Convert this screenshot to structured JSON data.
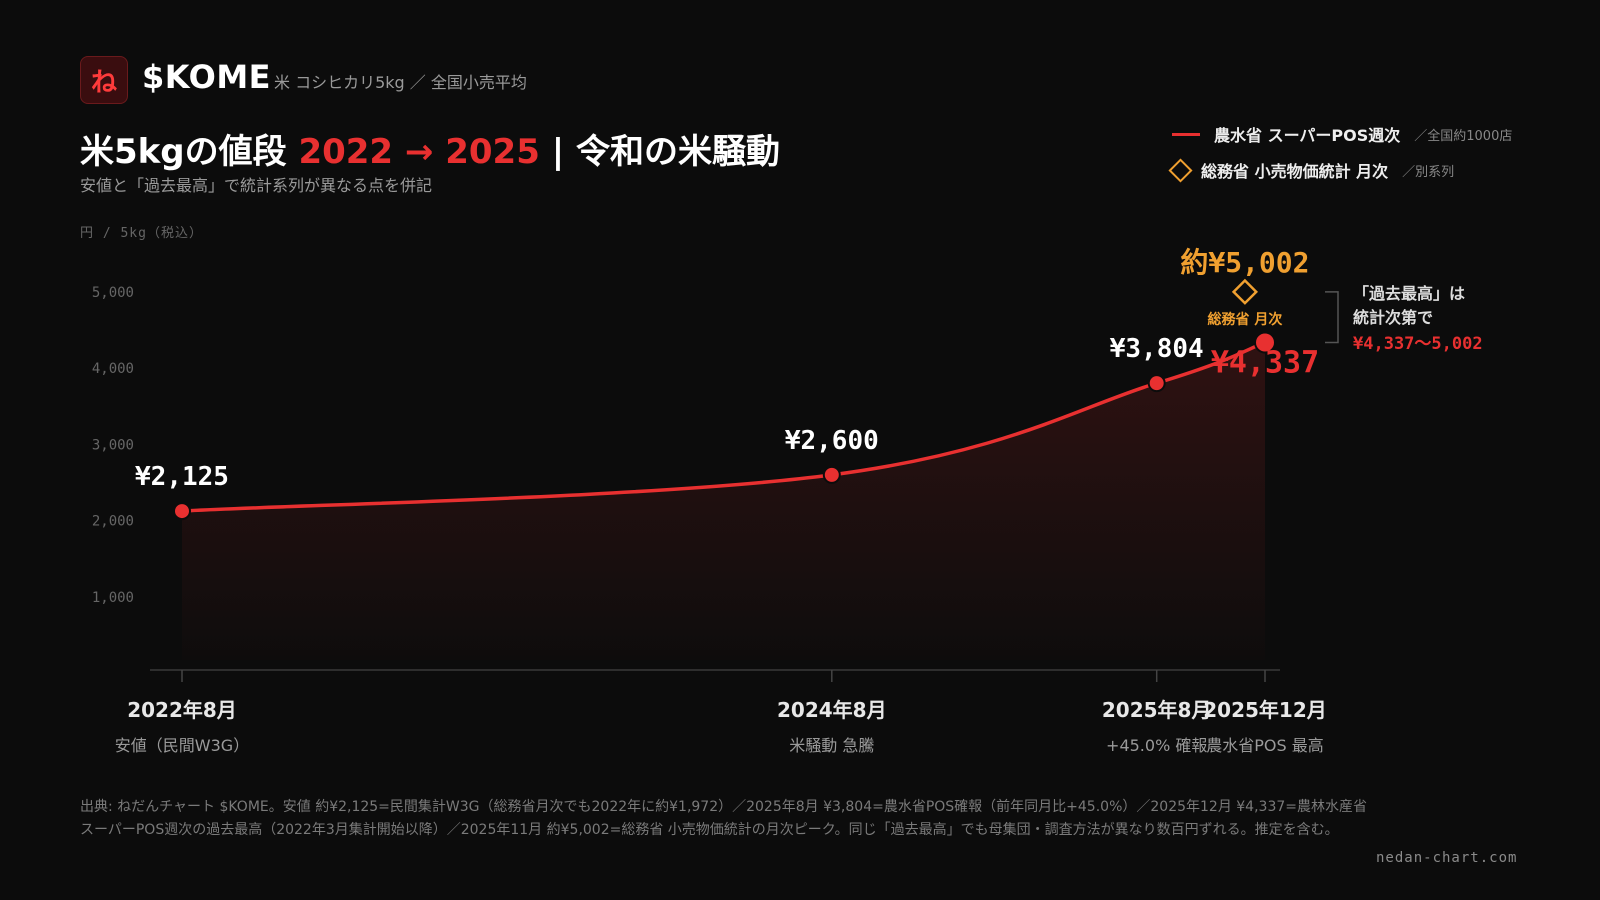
{
  "brand": {
    "logo_char": "ね",
    "ticker": "$KOME",
    "subtitle": "米 コシヒカリ5kg ／ 全国小売平均"
  },
  "heading": {
    "title_prefix": "米5kgの値段 ",
    "title_years": "2022 → 2025",
    "title_suffix": " | 令和の米騒動",
    "subtitle": "安値と「過去最高」で統計系列が異なる点を併記"
  },
  "legend": [
    {
      "label": "農水省 スーパーPOS週次",
      "note": "／全国約1000店"
    },
    {
      "label": "総務省 小売物価統計 月次",
      "note": "／別系列"
    }
  ],
  "chart_data": {
    "type": "line",
    "ylabel": "円 / 5kg（税込）",
    "ylim": [
      0,
      5200
    ],
    "yticks": [
      1000,
      2000,
      3000,
      4000,
      5000
    ],
    "ytick_labels": [
      "1,000",
      "2,000",
      "3,000",
      "4,000",
      "5,000"
    ],
    "series": [
      {
        "name": "農水省 スーパーPOS週次",
        "color": "#e83030",
        "points": [
          {
            "x": "2022-08",
            "y": 2125,
            "label": "¥2,125"
          },
          {
            "x": "2024-08",
            "y": 2600,
            "label": "¥2,600"
          },
          {
            "x": "2025-08",
            "y": 3804,
            "label": "¥3,804"
          },
          {
            "x": "2025-12",
            "y": 4337,
            "label": "¥4,337"
          }
        ]
      },
      {
        "name": "総務省 小売物価統計 月次",
        "color": "#f0a030",
        "points": [
          {
            "x": "2025-11",
            "y": 5002,
            "label": "約¥5,002",
            "sublabel": "総務省 月次"
          }
        ]
      }
    ],
    "xticks": [
      {
        "x": "2022-08",
        "label": "2022年8月",
        "sublabel": "安値（民間W3G）"
      },
      {
        "x": "2024-08",
        "label": "2024年8月",
        "sublabel": "米騒動 急騰"
      },
      {
        "x": "2025-08",
        "label": "2025年8月",
        "sublabel": "+45.0% 確報"
      },
      {
        "x": "2025-12",
        "label": "2025年12月",
        "sublabel": "農水省POS 最高"
      }
    ],
    "annotation": {
      "line1": "「過去最高」は",
      "line2": "統計次第で",
      "range": "¥4,337〜5,002"
    },
    "grid": false
  },
  "footer": {
    "source": "出典: ねだんチャート $KOME。安値 約¥2,125=民間集計W3G（総務省月次でも2022年に約¥1,972）／2025年8月 ¥3,804=農水省POS確報（前年同月比+45.0%）／2025年12月 ¥4,337=農林水産省スーパーPOS週次の過去最高（2022年3月集計開始以降）／2025年11月 約¥5,002=総務省 小売物価統計の月次ピーク。同じ「過去最高」でも母集団・調査方法が異なり数百円ずれる。推定を含む。",
    "site": "nedan-chart.com"
  }
}
